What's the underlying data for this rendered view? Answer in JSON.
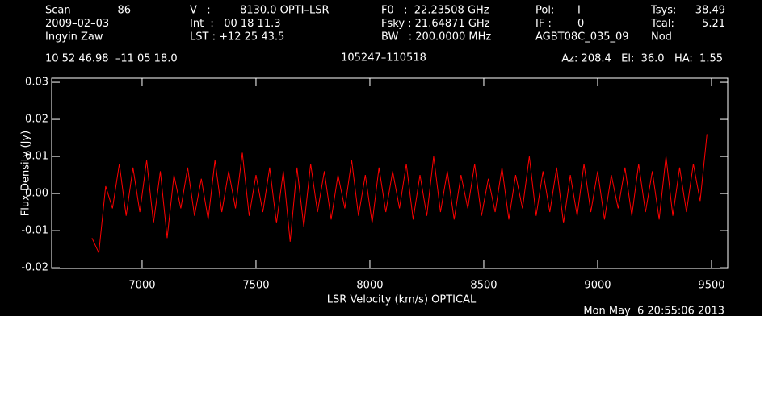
{
  "header": {
    "rows": [
      [
        "Scan",
        "86",
        "V   :",
        "8130.0 OPTI–LSR",
        "F0   :  22.23508 GHz",
        "Pol:",
        "I",
        "Tsys:",
        "38.49"
      ],
      [
        "2009–02–03",
        "",
        "Int  :   00 18 11.3",
        "",
        "Fsky : 21.64871 GHz",
        "IF :",
        "0",
        "Tcal:",
        "5.21"
      ],
      [
        "Ingyin Zaw",
        "",
        "LST : +12 25 43.5",
        "",
        "BW   : 200.0000 MHz",
        "AGBT08C_035_09",
        "",
        "Nod",
        ""
      ]
    ],
    "coords": "10 52 46.98  –11 05 18.0",
    "source": "105247–110518",
    "azel": "Az: 208.4   El:  36.0   HA:  1.55",
    "date": "Mon May  6 20:55:06 2013"
  },
  "chart_data": {
    "type": "line",
    "x_label": "LSR Velocity (km/s) OPTICAL",
    "y_label": "Flux Density (Jy)",
    "xlim": [
      6603,
      9571
    ],
    "ylim": [
      -0.0202,
      0.0311
    ],
    "xticks": [
      7000,
      7500,
      8000,
      8500,
      9000,
      9500
    ],
    "yticks": [
      -0.02,
      -0.01,
      {
        "value": 0,
        "label": "0.00"
      },
      0.01,
      0.02,
      0.03
    ],
    "x": [
      6780,
      6810,
      6840,
      6870,
      6900,
      6930,
      6960,
      6990,
      7020,
      7050,
      7080,
      7110,
      7140,
      7170,
      7200,
      7230,
      7260,
      7290,
      7320,
      7350,
      7380,
      7410,
      7440,
      7470,
      7500,
      7530,
      7560,
      7590,
      7620,
      7650,
      7680,
      7710,
      7740,
      7770,
      7800,
      7830,
      7860,
      7890,
      7920,
      7950,
      7980,
      8010,
      8040,
      8070,
      8100,
      8130,
      8160,
      8190,
      8220,
      8250,
      8280,
      8310,
      8340,
      8370,
      8400,
      8430,
      8460,
      8490,
      8520,
      8550,
      8580,
      8610,
      8640,
      8670,
      8700,
      8730,
      8760,
      8790,
      8820,
      8850,
      8880,
      8910,
      8940,
      8970,
      9000,
      9030,
      9060,
      9090,
      9120,
      9150,
      9180,
      9210,
      9240,
      9270,
      9300,
      9330,
      9360,
      9390,
      9420,
      9450,
      9480
    ],
    "series": [
      {
        "color": "#ff0000",
        "values": [
          -0.012,
          -0.016,
          0.002,
          -0.004,
          0.008,
          -0.006,
          0.007,
          -0.005,
          0.009,
          -0.008,
          0.006,
          -0.012,
          0.005,
          -0.004,
          0.007,
          -0.006,
          0.004,
          -0.007,
          0.009,
          -0.005,
          0.006,
          -0.004,
          0.011,
          -0.006,
          0.005,
          -0.005,
          0.007,
          -0.008,
          0.006,
          -0.013,
          0.007,
          -0.009,
          0.008,
          -0.005,
          0.006,
          -0.007,
          0.005,
          -0.004,
          0.009,
          -0.006,
          0.005,
          -0.008,
          0.007,
          -0.005,
          0.006,
          -0.004,
          0.008,
          -0.007,
          0.005,
          -0.006,
          0.01,
          -0.005,
          0.006,
          -0.007,
          0.005,
          -0.004,
          0.008,
          -0.006,
          0.004,
          -0.005,
          0.007,
          -0.007,
          0.005,
          -0.004,
          0.01,
          -0.006,
          0.006,
          -0.005,
          0.007,
          -0.008,
          0.005,
          -0.006,
          0.008,
          -0.005,
          0.006,
          -0.007,
          0.005,
          -0.004,
          0.007,
          -0.006,
          0.008,
          -0.005,
          0.006,
          -0.007,
          0.01,
          -0.006,
          0.007,
          -0.005,
          0.008,
          -0.002,
          0.016
        ]
      }
    ]
  }
}
